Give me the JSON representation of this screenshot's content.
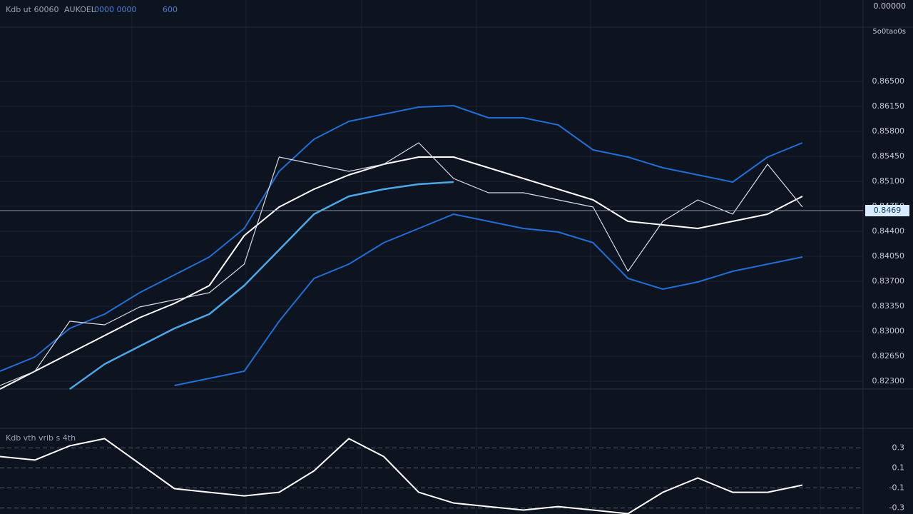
{
  "header": {
    "title": "Kdb ut 60060",
    "items": [
      "AUKOEL",
      "0000 0000",
      "600"
    ],
    "top_right": "0.00000",
    "sub_right": "5o0tao0s",
    "lower_title": "Kdb  vth  vrib  s  4th"
  },
  "chart_data": [
    {
      "type": "line",
      "grid": true,
      "categories": [
        null,
        null,
        null,
        null,
        null,
        null,
        null,
        null,
        null,
        null,
        null,
        null,
        null,
        null,
        null,
        null,
        null,
        null,
        null,
        null,
        null,
        null,
        null,
        null
      ],
      "ylim": [
        0.8219,
        0.8724
      ],
      "yticks": [
        {
          "value": 0.865,
          "label": "0.86500"
        },
        {
          "value": 0.8615,
          "label": "0.86150"
        },
        {
          "value": 0.858,
          "label": "0.85800"
        },
        {
          "value": 0.8545,
          "label": "0.85450"
        },
        {
          "value": 0.851,
          "label": "0.85100"
        },
        {
          "value": 0.8475,
          "label": "0.84750"
        },
        {
          "value": 0.844,
          "label": "0.84400"
        },
        {
          "value": 0.8405,
          "label": "0.84050"
        },
        {
          "value": 0.837,
          "label": "0.83700"
        },
        {
          "value": 0.8335,
          "label": "0.83350"
        },
        {
          "value": 0.83,
          "label": "0.83000"
        },
        {
          "value": 0.8265,
          "label": "0.82650"
        },
        {
          "value": 0.823,
          "label": "0.82300"
        }
      ],
      "last_price": 0.8469,
      "series": [
        {
          "color": "#1f6fd6",
          "width": 2,
          "values": [
            0.8244,
            0.8264,
            0.8304,
            0.8324,
            0.8354,
            0.8379,
            0.8404,
            0.8444,
            0.8524,
            0.8569,
            0.8594,
            0.8604,
            0.8614,
            0.8616,
            0.8599,
            0.8599,
            0.8589,
            0.8554,
            0.8544,
            0.8529,
            0.8519,
            0.8509,
            0.8544,
            0.8564
          ]
        },
        {
          "color": "#1f6fd6",
          "width": 2,
          "values": [
            null,
            null,
            null,
            null,
            null,
            0.8224,
            0.8234,
            0.8244,
            0.8314,
            0.8374,
            0.8394,
            0.8424,
            0.8444,
            0.8464,
            0.8454,
            0.8444,
            0.8439,
            0.8424,
            0.8374,
            0.8359,
            0.8369,
            0.8384,
            0.8394,
            0.8404
          ]
        },
        {
          "color": "#4aa8e8",
          "width": 2.5,
          "values": [
            null,
            null,
            0.8219,
            0.8254,
            0.8279,
            0.8304,
            0.8324,
            0.8364,
            0.8414,
            0.8464,
            0.8489,
            0.8499,
            0.8506,
            0.8509,
            null,
            null,
            null,
            null,
            null,
            null,
            null,
            null,
            null,
            null
          ]
        },
        {
          "color": "#ffffff",
          "width": 2,
          "values": [
            0.8219,
            0.8244,
            0.8269,
            0.8294,
            0.8319,
            0.8339,
            0.8364,
            0.8434,
            0.8474,
            0.8499,
            0.8519,
            0.8534,
            0.8544,
            0.8544,
            0.8529,
            0.8514,
            0.8499,
            0.8484,
            0.8454,
            0.8449,
            0.8444,
            0.8454,
            0.8464,
            0.8489
          ]
        },
        {
          "color": "#d8dde6",
          "width": 1.2,
          "values": [
            0.8224,
            0.8244,
            0.8314,
            0.8309,
            0.8334,
            0.8344,
            0.8354,
            0.8394,
            0.8544,
            0.8534,
            0.8524,
            0.8534,
            0.8564,
            0.8514,
            0.8494,
            0.8494,
            0.8484,
            0.8474,
            0.8384,
            0.8454,
            0.8484,
            0.8464,
            0.8534,
            0.8474
          ]
        }
      ]
    },
    {
      "type": "line",
      "grid": true,
      "categories": [
        null,
        null,
        null,
        null,
        null,
        null,
        null,
        null,
        null,
        null,
        null,
        null,
        null,
        null,
        null,
        null,
        null,
        null,
        null,
        null,
        null,
        null,
        null,
        null
      ],
      "ylim": [
        -0.36,
        0.46
      ],
      "yticks": [
        0.3,
        0.1,
        -0.1,
        -0.3
      ],
      "series": [
        {
          "color": "#ffffff",
          "width": 2,
          "values": [
            0.214,
            0.179,
            0.321,
            0.393,
            0.143,
            -0.107,
            -0.143,
            -0.179,
            -0.143,
            0.071,
            0.393,
            0.214,
            -0.143,
            -0.25,
            -0.286,
            -0.321,
            -0.286,
            -0.321,
            -0.357,
            -0.143,
            0.0,
            -0.143,
            -0.143,
            -0.071
          ]
        }
      ]
    }
  ]
}
